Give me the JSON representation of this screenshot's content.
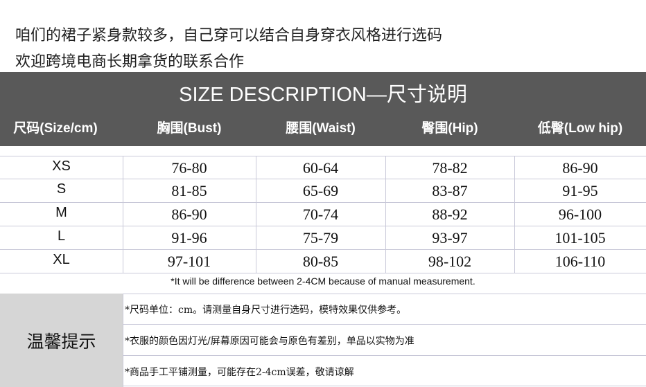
{
  "intro_lines": [
    "咱们的裙子紧身款较多，自己穿可以结合自身穿衣风格进行选码",
    "欢迎跨境电商长期拿货的联系合作"
  ],
  "title": "SIZE DESCRIPTION—尺寸说明",
  "headers": [
    "尺码(Size/cm)",
    "胸围(Bust)",
    "腰围(Waist)",
    "臀围(Hip)",
    "低臀(Low hip)"
  ],
  "rows": [
    [
      "XS",
      "76-80",
      "60-64",
      "78-82",
      "86-90"
    ],
    [
      "S",
      "81-85",
      "65-69",
      "83-87",
      "91-95"
    ],
    [
      "M",
      "86-90",
      "70-74",
      "88-92",
      "96-100"
    ],
    [
      "L",
      "91-96",
      "75-79",
      "93-97",
      "101-105"
    ],
    [
      "XL",
      "97-101",
      "80-85",
      "98-102",
      "106-110"
    ]
  ],
  "note": "*It will be difference between 2-4CM because of manual measurement.",
  "tips_label": "温馨提示",
  "tips": [
    "*尺码单位：cm。请测量自身尺寸进行选码，模特效果仅供参考。",
    "*衣服的颜色因灯光/屏幕原因可能会与原色有差别，单品以实物为准",
    "*商品手工平铺测量，可能存在2-4cm误差，敬请谅解"
  ],
  "colors": {
    "header_bg": "#595959",
    "tips_bg": "#d6d6d6",
    "grid": "#c8c8d8"
  }
}
